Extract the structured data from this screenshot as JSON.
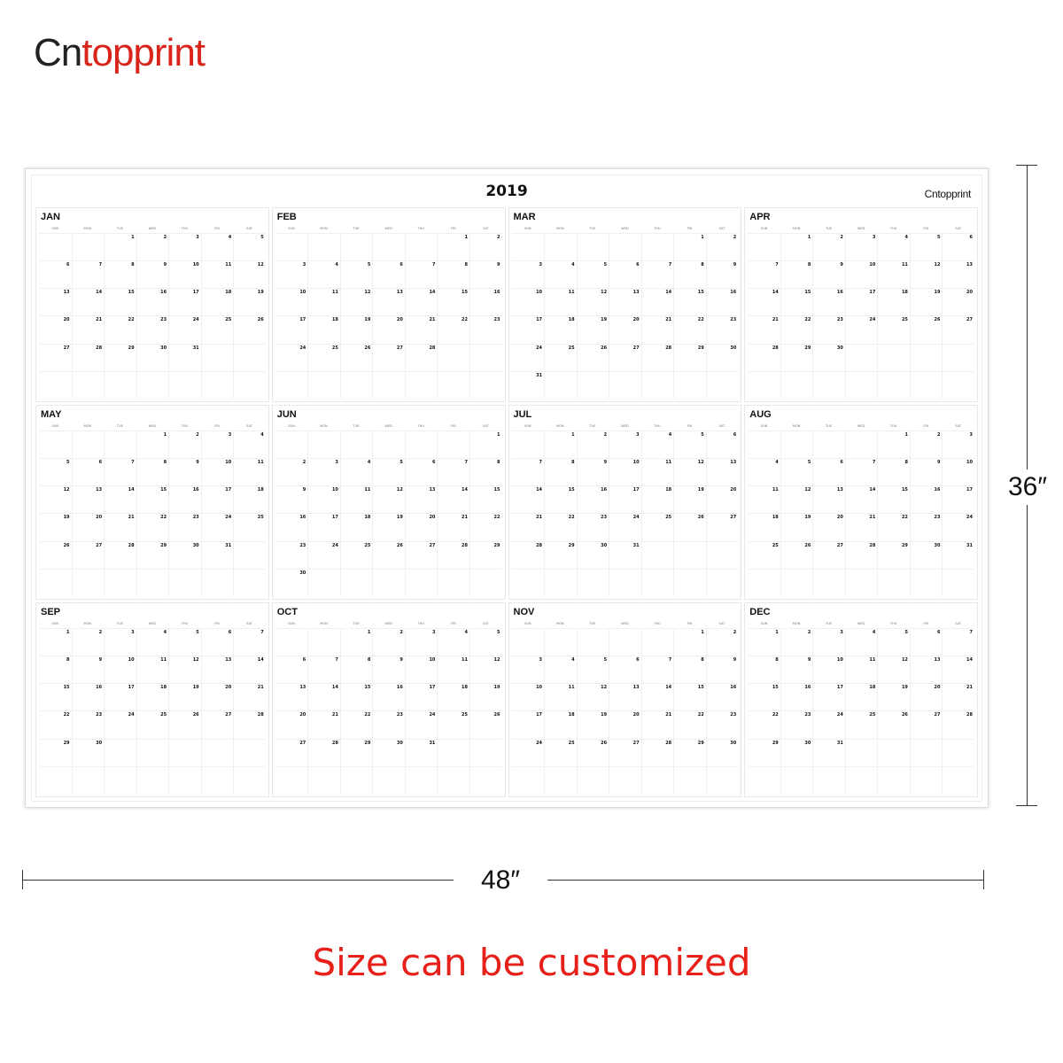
{
  "brand": {
    "part1": "Cn",
    "part2": "topprint",
    "color_dark": "#222222",
    "color_red": "#d9241c"
  },
  "calendar": {
    "year": "2019",
    "logo_text": "Cntopprint",
    "weekdays": [
      "SUN",
      "MON",
      "TUE",
      "WED",
      "THU",
      "FRI",
      "SAT"
    ],
    "months": [
      {
        "name": "JAN",
        "start": 2,
        "days": 31
      },
      {
        "name": "FEB",
        "start": 5,
        "days": 28
      },
      {
        "name": "MAR",
        "start": 5,
        "days": 31
      },
      {
        "name": "APR",
        "start": 1,
        "days": 30
      },
      {
        "name": "MAY",
        "start": 3,
        "days": 31
      },
      {
        "name": "JUN",
        "start": 6,
        "days": 30
      },
      {
        "name": "JUL",
        "start": 1,
        "days": 31
      },
      {
        "name": "AUG",
        "start": 4,
        "days": 31
      },
      {
        "name": "SEP",
        "start": 0,
        "days": 30
      },
      {
        "name": "OCT",
        "start": 2,
        "days": 31
      },
      {
        "name": "NOV",
        "start": 5,
        "days": 30
      },
      {
        "name": "DEC",
        "start": 0,
        "days": 31
      }
    ]
  },
  "dimensions": {
    "height": "36″",
    "width": "48″"
  },
  "tagline": {
    "text": "Size can be customized",
    "color": "#e8201a"
  }
}
